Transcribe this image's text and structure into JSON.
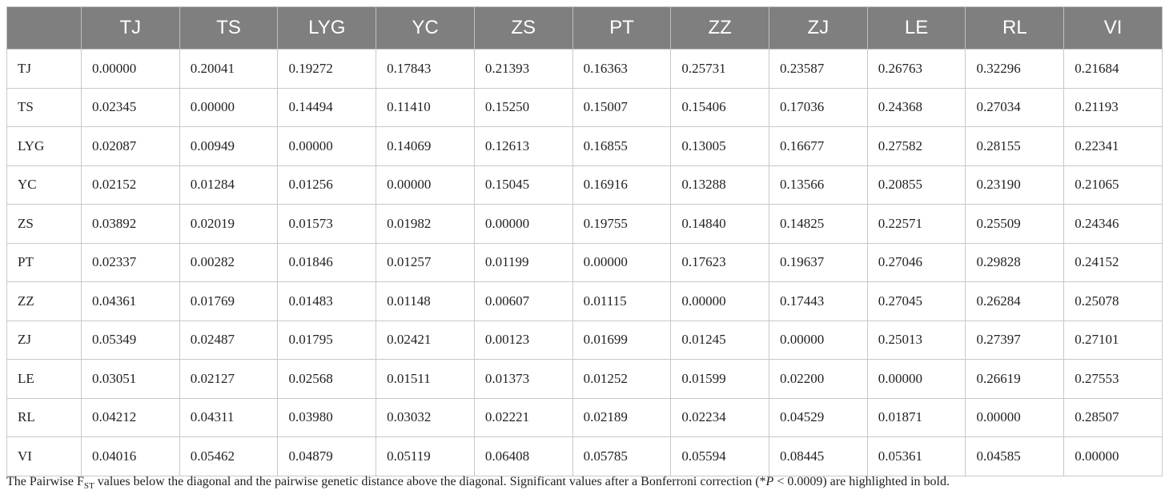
{
  "table": {
    "columns": [
      "",
      "TJ",
      "TS",
      "LYG",
      "YC",
      "ZS",
      "PT",
      "ZZ",
      "ZJ",
      "LE",
      "RL",
      "VI"
    ],
    "rows": [
      [
        "TJ",
        "0.00000",
        "0.20041",
        "0.19272",
        "0.17843",
        "0.21393",
        "0.16363",
        "0.25731",
        "0.23587",
        "0.26763",
        "0.32296",
        "0.21684"
      ],
      [
        "TS",
        "0.02345",
        "0.00000",
        "0.14494",
        "0.11410",
        "0.15250",
        "0.15007",
        "0.15406",
        "0.17036",
        "0.24368",
        "0.27034",
        "0.21193"
      ],
      [
        "LYG",
        "0.02087",
        "0.00949",
        "0.00000",
        "0.14069",
        "0.12613",
        "0.16855",
        "0.13005",
        "0.16677",
        "0.27582",
        "0.28155",
        "0.22341"
      ],
      [
        "YC",
        "0.02152",
        "0.01284",
        "0.01256",
        "0.00000",
        "0.15045",
        "0.16916",
        "0.13288",
        "0.13566",
        "0.20855",
        "0.23190",
        "0.21065"
      ],
      [
        "ZS",
        "0.03892",
        "0.02019",
        "0.01573",
        "0.01982",
        "0.00000",
        "0.19755",
        "0.14840",
        "0.14825",
        "0.22571",
        "0.25509",
        "0.24346"
      ],
      [
        "PT",
        "0.02337",
        "0.00282",
        "0.01846",
        "0.01257",
        "0.01199",
        "0.00000",
        "0.17623",
        "0.19637",
        "0.27046",
        "0.29828",
        "0.24152"
      ],
      [
        "ZZ",
        "0.04361",
        "0.01769",
        "0.01483",
        "0.01148",
        "0.00607",
        "0.01115",
        "0.00000",
        "0.17443",
        "0.27045",
        "0.26284",
        "0.25078"
      ],
      [
        "ZJ",
        "0.05349",
        "0.02487",
        "0.01795",
        "0.02421",
        "0.00123",
        "0.01699",
        "0.01245",
        "0.00000",
        "0.25013",
        "0.27397",
        "0.27101"
      ],
      [
        "LE",
        "0.03051",
        "0.02127",
        "0.02568",
        "0.01511",
        "0.01373",
        "0.01252",
        "0.01599",
        "0.02200",
        "0.00000",
        "0.26619",
        "0.27553"
      ],
      [
        "RL",
        "0.04212",
        "0.04311",
        "0.03980",
        "0.03032",
        "0.02221",
        "0.02189",
        "0.02234",
        "0.04529",
        "0.01871",
        "0.00000",
        "0.28507"
      ],
      [
        "VI",
        "0.04016",
        "0.05462",
        "0.04879",
        "0.05119",
        "0.06408",
        "0.05785",
        "0.05594",
        "0.08445",
        "0.05361",
        "0.04585",
        "0.00000"
      ]
    ]
  },
  "note": [
    "The Pairwise F",
    "ST",
    " values below the diagonal and the pairwise genetic distance above the diagonal. Significant values after a Bonferroni correction (*",
    "P",
    " < 0.0009) are highlighted in bold."
  ]
}
